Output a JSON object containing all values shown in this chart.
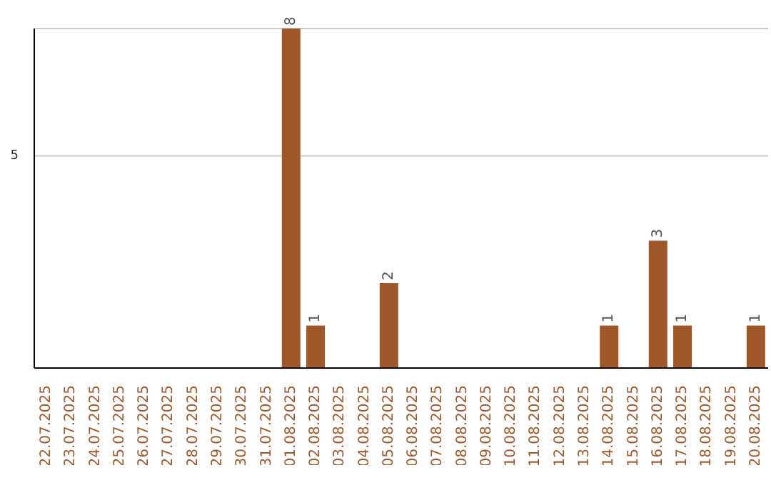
{
  "chart_data": {
    "type": "bar",
    "categories": [
      "22.07.2025",
      "23.07.2025",
      "24.07.2025",
      "25.07.2025",
      "26.07.2025",
      "27.07.2025",
      "28.07.2025",
      "29.07.2025",
      "30.07.2025",
      "31.07.2025",
      "01.08.2025",
      "02.08.2025",
      "03.08.2025",
      "04.08.2025",
      "05.08.2025",
      "06.08.2025",
      "07.08.2025",
      "08.08.2025",
      "09.08.2025",
      "10.08.2025",
      "11.08.2025",
      "12.08.2025",
      "13.08.2025",
      "14.08.2025",
      "15.08.2025",
      "16.08.2025",
      "17.08.2025",
      "18.08.2025",
      "19.08.2025",
      "20.08.2025"
    ],
    "values": [
      0,
      0,
      0,
      0,
      0,
      0,
      0,
      0,
      0,
      0,
      8,
      1,
      0,
      0,
      2,
      0,
      0,
      0,
      0,
      0,
      0,
      0,
      0,
      1,
      0,
      3,
      1,
      0,
      0,
      1
    ],
    "value_labels": [
      null,
      null,
      null,
      null,
      null,
      null,
      null,
      null,
      null,
      null,
      "8",
      "1",
      null,
      null,
      "2",
      null,
      null,
      null,
      null,
      null,
      null,
      null,
      null,
      "1",
      null,
      "3",
      "1",
      null,
      null,
      "1"
    ],
    "color": "#a0572a",
    "ylim": [
      0,
      8
    ],
    "yticks": [
      5
    ],
    "grid": "y"
  }
}
